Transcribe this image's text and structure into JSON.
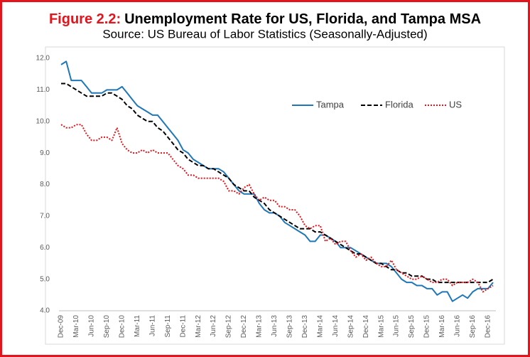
{
  "chart_data": {
    "type": "line",
    "title_label": "Figure 2.2:",
    "title": "Unemployment Rate for US, Florida, and Tampa MSA",
    "subtitle": "Source: US Bureau of Labor Statistics (Seasonally-Adjusted)",
    "categories": [
      "Dec-09",
      null,
      null,
      "Mar-10",
      null,
      null,
      "Jun-10",
      null,
      null,
      "Sep-10",
      null,
      null,
      "Dec-10",
      null,
      null,
      "Mar-11",
      null,
      null,
      "Jun-11",
      null,
      null,
      "Sep-11",
      null,
      null,
      "Dec-11",
      null,
      null,
      "Mar-12",
      null,
      null,
      "Jun-12",
      null,
      null,
      "Sep-12",
      null,
      null,
      "Dec-12",
      null,
      null,
      "Mar-13",
      null,
      null,
      "Jun-13",
      null,
      null,
      "Sep-13",
      null,
      null,
      "Dec-13",
      null,
      null,
      "Mar-14",
      null,
      null,
      "Jun-14",
      null,
      null,
      "Sep-14",
      null,
      null,
      "Dec-14",
      null,
      null,
      "Mar-15",
      null,
      null,
      "Jun-15",
      null,
      null,
      "Sep-15",
      null,
      null,
      "Dec-15",
      null,
      null,
      "Mar-16",
      null,
      null,
      "Jun-16",
      null,
      null,
      "Sep-16",
      null,
      null,
      "Dec-16",
      null
    ],
    "series": [
      {
        "name": "Tampa",
        "color": "#1f77b8",
        "style": "solid",
        "values": [
          11.8,
          11.9,
          11.3,
          11.3,
          11.3,
          11.1,
          10.9,
          10.9,
          10.9,
          11.0,
          11.0,
          11.0,
          11.1,
          10.9,
          10.7,
          10.5,
          10.4,
          10.3,
          10.2,
          10.2,
          10.0,
          9.8,
          9.6,
          9.4,
          9.1,
          9.0,
          8.8,
          8.7,
          8.6,
          8.5,
          8.5,
          8.5,
          8.4,
          8.2,
          8.0,
          7.8,
          7.7,
          7.7,
          7.7,
          7.4,
          7.2,
          7.1,
          7.1,
          7.0,
          6.8,
          6.7,
          6.6,
          6.5,
          6.4,
          6.2,
          6.2,
          6.4,
          6.4,
          6.3,
          6.2,
          6.0,
          6.0,
          6.0,
          5.9,
          5.8,
          5.7,
          5.6,
          5.5,
          5.5,
          5.5,
          5.4,
          5.2,
          5.0,
          4.9,
          4.9,
          4.8,
          4.8,
          4.7,
          4.7,
          4.5,
          4.6,
          4.6,
          4.3,
          4.4,
          4.5,
          4.4,
          4.6,
          4.7,
          4.7,
          4.7,
          4.9
        ]
      },
      {
        "name": "Florida",
        "color": "#000000",
        "style": "dashed",
        "values": [
          11.2,
          11.2,
          11.1,
          11.0,
          10.9,
          10.8,
          10.8,
          10.8,
          10.8,
          10.9,
          10.9,
          10.8,
          10.7,
          10.5,
          10.4,
          10.2,
          10.1,
          10.0,
          10.0,
          9.8,
          9.7,
          9.5,
          9.3,
          9.1,
          9.0,
          8.8,
          8.7,
          8.6,
          8.6,
          8.5,
          8.5,
          8.4,
          8.3,
          8.2,
          8.0,
          7.9,
          7.8,
          7.8,
          7.6,
          7.5,
          7.4,
          7.2,
          7.1,
          7.0,
          6.9,
          6.8,
          6.7,
          6.6,
          6.6,
          6.6,
          6.5,
          6.5,
          6.4,
          6.3,
          6.2,
          6.1,
          6.0,
          5.9,
          5.8,
          5.8,
          5.7,
          5.6,
          5.5,
          5.5,
          5.4,
          5.3,
          5.3,
          5.2,
          5.2,
          5.1,
          5.1,
          5.1,
          5.0,
          5.0,
          4.9,
          4.9,
          4.9,
          4.9,
          4.9,
          4.9,
          4.9,
          4.9,
          4.9,
          4.9,
          4.9,
          5.0
        ]
      },
      {
        "name": "US",
        "color": "#e3141c",
        "style": "dotted",
        "values": [
          9.9,
          9.8,
          9.8,
          9.9,
          9.9,
          9.6,
          9.4,
          9.4,
          9.5,
          9.5,
          9.4,
          9.8,
          9.3,
          9.1,
          9.0,
          9.0,
          9.1,
          9.0,
          9.1,
          9.0,
          9.0,
          9.0,
          8.8,
          8.6,
          8.5,
          8.3,
          8.3,
          8.2,
          8.2,
          8.2,
          8.2,
          8.2,
          8.1,
          7.8,
          7.8,
          7.7,
          7.9,
          8.0,
          7.7,
          7.5,
          7.6,
          7.5,
          7.5,
          7.3,
          7.3,
          7.2,
          7.2,
          7.0,
          6.7,
          6.6,
          6.7,
          6.7,
          6.2,
          6.3,
          6.1,
          6.2,
          6.2,
          5.9,
          5.7,
          5.8,
          5.6,
          5.7,
          5.5,
          5.4,
          5.4,
          5.6,
          5.3,
          5.2,
          5.1,
          5.0,
          5.0,
          5.1,
          5.0,
          4.9,
          4.9,
          5.0,
          5.0,
          4.8,
          4.9,
          4.9,
          4.9,
          5.0,
          4.9,
          4.6,
          4.7,
          4.8
        ]
      }
    ],
    "ylim": [
      4,
      12
    ],
    "yticks": [
      {
        "value": 4,
        "label": "4.0"
      },
      {
        "value": 5,
        "label": "5.0"
      },
      {
        "value": 6,
        "label": "6.0"
      },
      {
        "value": 7,
        "label": "7.0"
      },
      {
        "value": 8,
        "label": "8.0"
      },
      {
        "value": 9,
        "label": "9.0"
      },
      {
        "value": 10,
        "label": "10.0"
      },
      {
        "value": 11,
        "label": "11.0"
      },
      {
        "value": 12,
        "label": "12.0"
      }
    ],
    "grid": false,
    "legend": "top-right"
  }
}
